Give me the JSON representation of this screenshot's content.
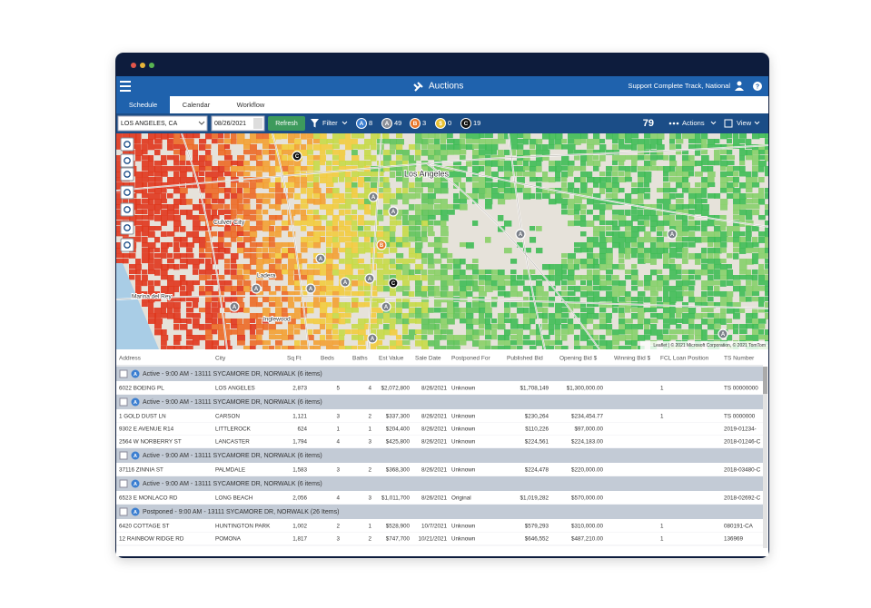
{
  "window": {
    "title": "Auctions",
    "user": "Support Complete Track, National",
    "help": "?"
  },
  "tabs": [
    "Schedule",
    "Calendar",
    "Workflow"
  ],
  "toolbar": {
    "location": "LOS ANGELES, CA",
    "date": "08/26/2021",
    "refresh": "Refresh",
    "filter": "Filter",
    "badges": [
      {
        "letter": "A",
        "count": 8
      },
      {
        "letter": "A",
        "count": 49
      },
      {
        "letter": "B",
        "count": 3
      },
      {
        "letter": "$",
        "count": 0
      },
      {
        "letter": "C",
        "count": 19
      }
    ],
    "total": 79,
    "actions": "Actions",
    "view": "View"
  },
  "map": {
    "labels": [
      "Los Angeles",
      "Culver City",
      "Marina del Rey",
      "Inglewood",
      "Ladera"
    ],
    "markers": [
      "C",
      "A",
      "A",
      "B",
      "A",
      "A",
      "A",
      "A",
      "A",
      "C",
      "A",
      "A",
      "A",
      "A",
      "A",
      "A"
    ],
    "attribution": "Leaflet | © 2021 Microsoft Corporation, © 2021 TomTom"
  },
  "table": {
    "columns": [
      "Address",
      "City",
      "Sq Ft",
      "Beds",
      "Baths",
      "Est Value",
      "Sale Date",
      "Postponed For",
      "Published Bid",
      "Opening Bid $",
      "Winning Bid $",
      "FCL Loan Position",
      "TS Number"
    ],
    "groups": [
      {
        "icon": "A",
        "title": "Active - 9:00 AM - 13111 SYCAMORE DR, NORWALK (6 items)",
        "rows": [
          [
            "6022 BOEING PL",
            "LOS ANGELES",
            "2,873",
            "5",
            "4",
            "$2,072,800",
            "8/26/2021",
            "Unknown",
            "$1,708,149",
            "$1,300,000.00",
            "",
            "1",
            "TS 00000000"
          ]
        ]
      },
      {
        "icon": "A",
        "title": "Active - 9:00 AM - 13111 SYCAMORE DR, NORWALK (6 items)",
        "rows": [
          [
            "1 GOLD DUST LN",
            "CARSON",
            "1,121",
            "3",
            "2",
            "$337,300",
            "8/26/2021",
            "Unknown",
            "$230,264",
            "$234,454.77",
            "",
            "1",
            "TS 0000000"
          ],
          [
            "9302 E AVENUE R14",
            "LITTLEROCK",
            "624",
            "1",
            "1",
            "$204,400",
            "8/26/2021",
            "Unknown",
            "$110,226",
            "$97,000.00",
            "",
            "",
            "2019-01234-"
          ],
          [
            "2564 W NORBERRY ST",
            "LANCASTER",
            "1,794",
            "4",
            "3",
            "$425,800",
            "8/26/2021",
            "Unknown",
            "$224,561",
            "$224,183.00",
            "",
            "",
            "2018-01246-C"
          ]
        ]
      },
      {
        "icon": "A",
        "title": "Active - 9:00 AM - 13111 SYCAMORE DR, NORWALK (6 items)",
        "rows": [
          [
            "37116 ZINNIA ST",
            "PALMDALE",
            "1,583",
            "3",
            "2",
            "$368,300",
            "8/26/2021",
            "Unknown",
            "$224,478",
            "$220,000.00",
            "",
            "",
            "2018-03480-C"
          ]
        ]
      },
      {
        "icon": "A",
        "title": "Active - 9:00 AM - 13111 SYCAMORE DR, NORWALK (6 items)",
        "rows": [
          [
            "6523 E MONLACO RD",
            "LONG BEACH",
            "2,056",
            "4",
            "3",
            "$1,011,700",
            "8/26/2021",
            "Original",
            "$1,019,282",
            "$570,000.00",
            "",
            "",
            "2018-02692-C"
          ]
        ]
      },
      {
        "icon": "A",
        "title": "Postponed - 9:00 AM - 13111 SYCAMORE DR, NORWALK (26 Items)",
        "rows": [
          [
            "6420 COTTAGE ST",
            "HUNTINGTON PARK",
            "1,002",
            "2",
            "1",
            "$528,900",
            "10/7/2021",
            "Unknown",
            "$579,293",
            "$310,000.00",
            "",
            "1",
            "080191-CA"
          ],
          [
            "12 RAINBOW RIDGE RD",
            "POMONA",
            "1,817",
            "3",
            "2",
            "$747,700",
            "10/21/2021",
            "Unknown",
            "$646,552",
            "$487,210.00",
            "",
            "1",
            "136969"
          ]
        ]
      }
    ]
  }
}
